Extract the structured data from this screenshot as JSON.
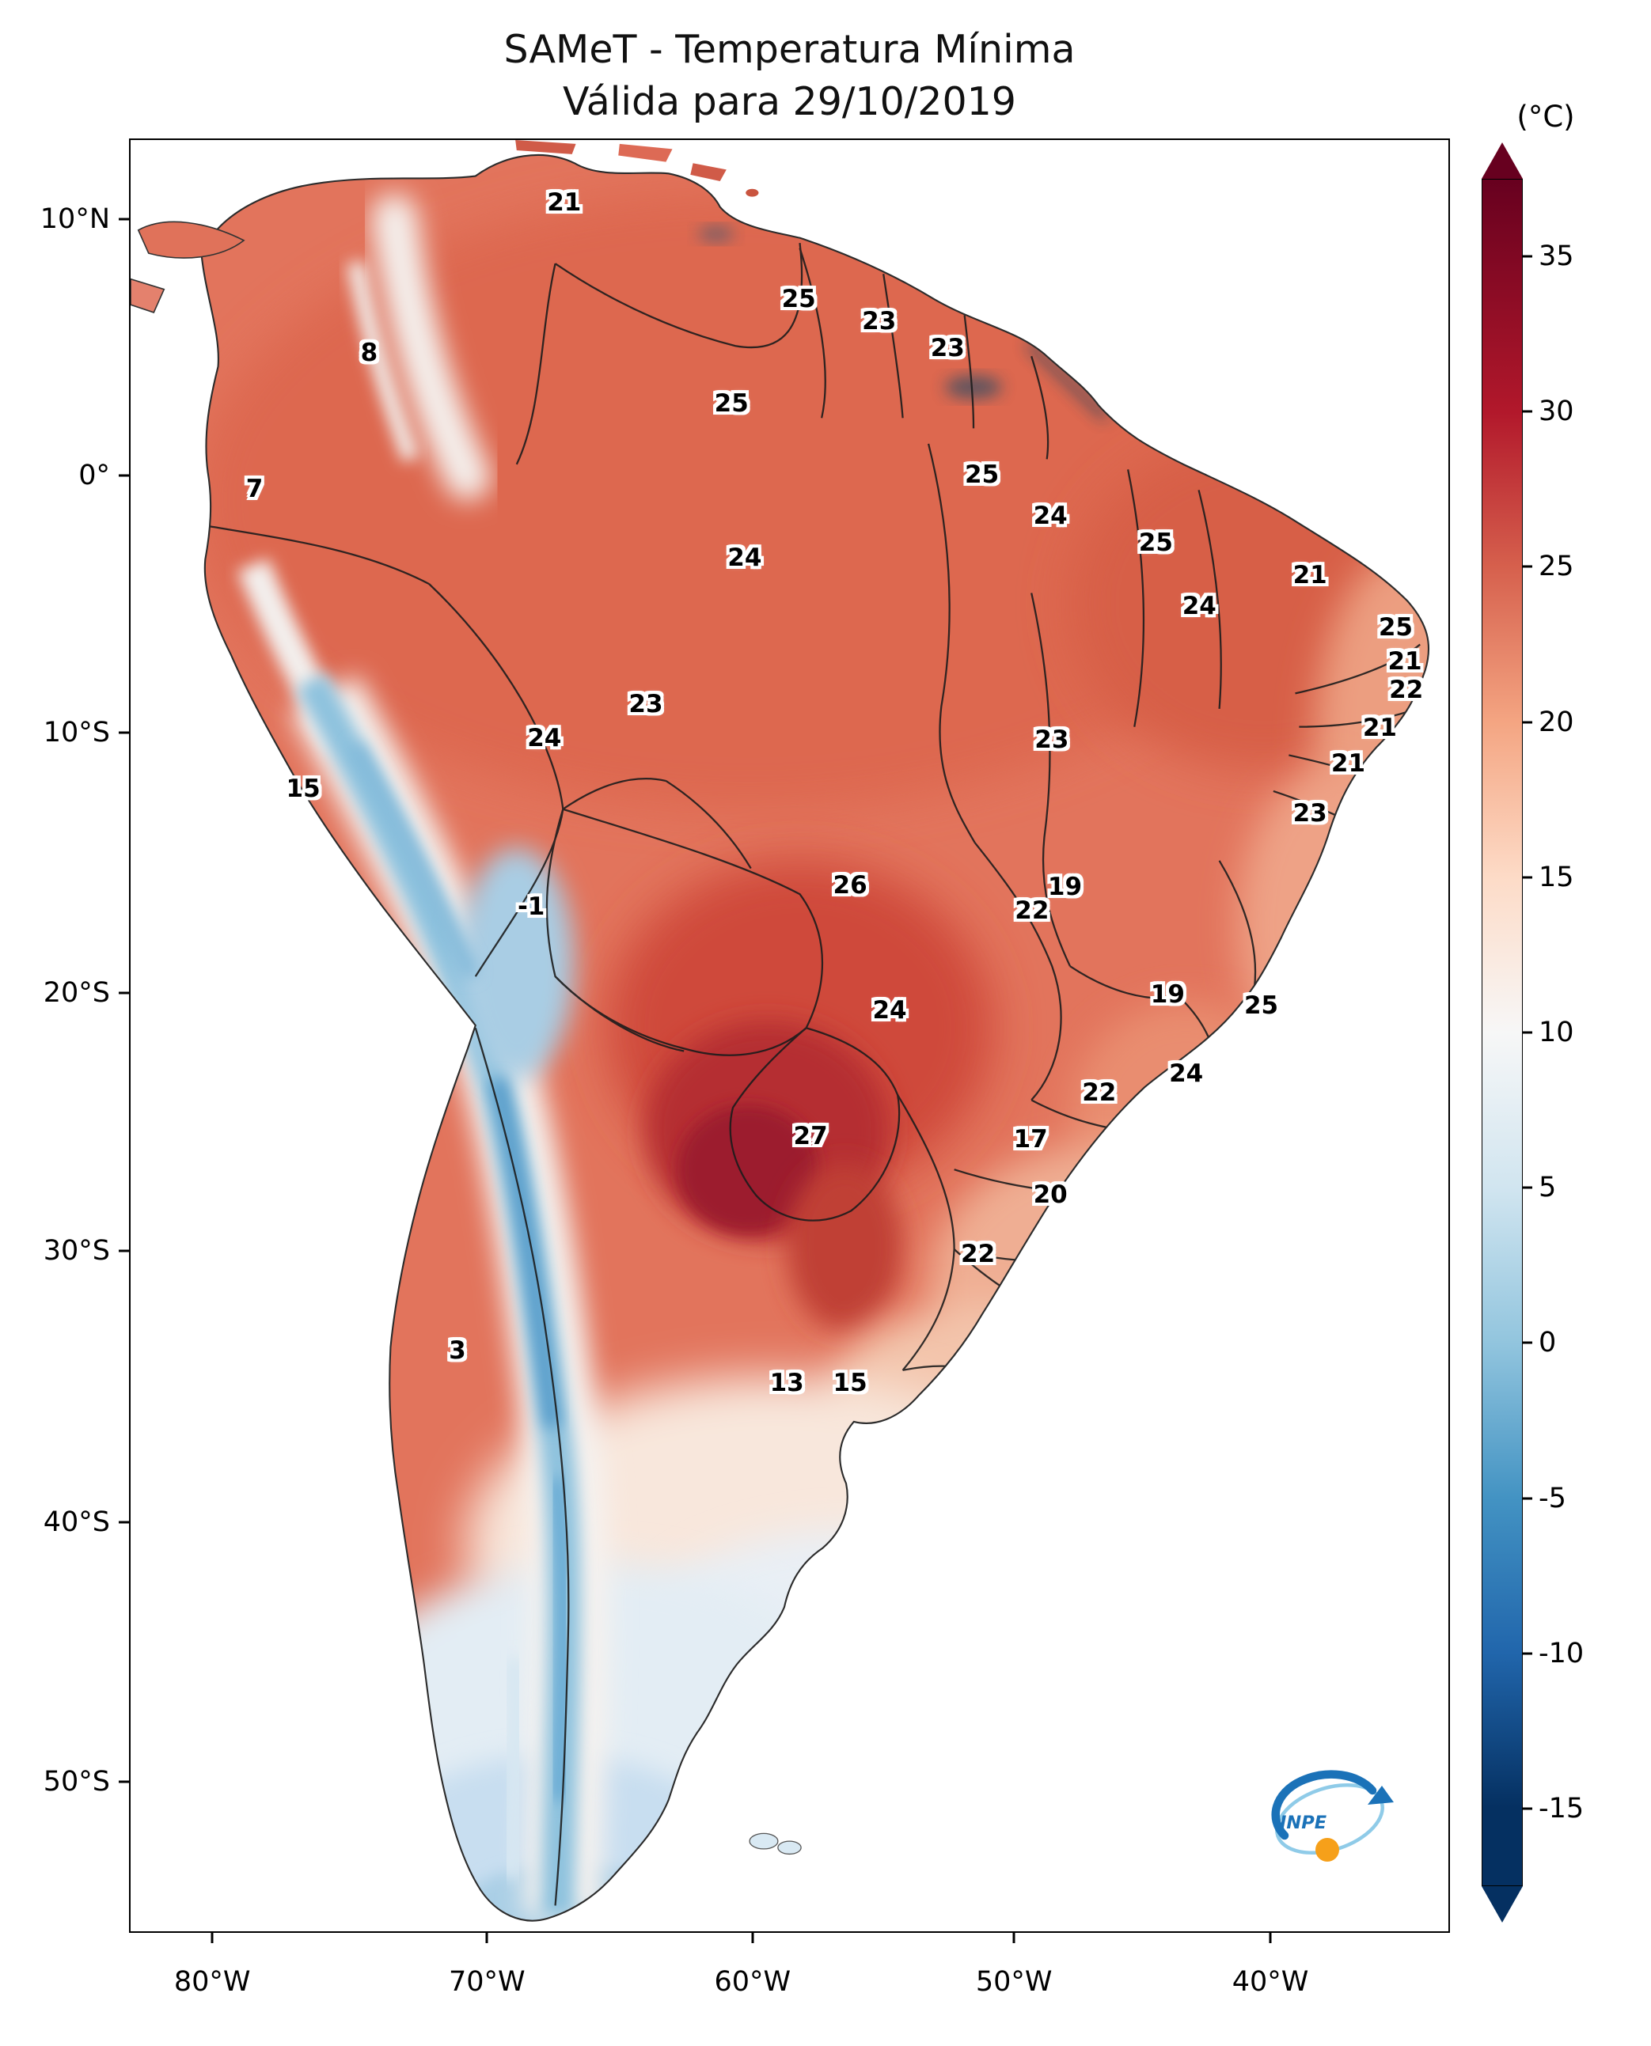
{
  "title": {
    "line1": "SAMeT - Temperatura Mínima",
    "line2": "Válida para 29/10/2019"
  },
  "colorbar": {
    "unit": "(°C)",
    "vmax": 37.5,
    "vmin": -17.5,
    "ticks": [
      35,
      30,
      25,
      20,
      15,
      10,
      5,
      0,
      -5,
      -10,
      -15
    ],
    "stops": [
      {
        "v": 37.5,
        "c": "#67001f"
      },
      {
        "v": 30,
        "c": "#b2182b"
      },
      {
        "v": 25,
        "c": "#d6604d"
      },
      {
        "v": 20,
        "c": "#f4a582"
      },
      {
        "v": 15,
        "c": "#fddbc7"
      },
      {
        "v": 10,
        "c": "#f7f7f7"
      },
      {
        "v": 5,
        "c": "#d1e5f0"
      },
      {
        "v": 0,
        "c": "#92c5de"
      },
      {
        "v": -5,
        "c": "#4393c3"
      },
      {
        "v": -10,
        "c": "#2166ac"
      },
      {
        "v": -15,
        "c": "#053061"
      },
      {
        "v": -17.5,
        "c": "#053061"
      }
    ]
  },
  "axes": {
    "lat_ticks": [
      {
        "label": "10°N",
        "f": 0.045
      },
      {
        "label": "0°",
        "f": 0.188
      },
      {
        "label": "10°S",
        "f": 0.331
      },
      {
        "label": "20°S",
        "f": 0.476
      },
      {
        "label": "30°S",
        "f": 0.62
      },
      {
        "label": "40°S",
        "f": 0.771
      },
      {
        "label": "50°S",
        "f": 0.916
      }
    ],
    "lon_ticks": [
      {
        "label": "80°W",
        "f": 0.063
      },
      {
        "label": "70°W",
        "f": 0.271
      },
      {
        "label": "60°W",
        "f": 0.472
      },
      {
        "label": "50°W",
        "f": 0.67
      },
      {
        "label": "40°W",
        "f": 0.864
      }
    ]
  },
  "map_labels": [
    {
      "value": "21",
      "fx": 0.329,
      "fy": 0.035
    },
    {
      "value": "25",
      "fx": 0.507,
      "fy": 0.089
    },
    {
      "value": "23",
      "fx": 0.568,
      "fy": 0.101
    },
    {
      "value": "23",
      "fx": 0.62,
      "fy": 0.116
    },
    {
      "value": "8",
      "fx": 0.181,
      "fy": 0.119
    },
    {
      "value": "25",
      "fx": 0.456,
      "fy": 0.147
    },
    {
      "value": "7",
      "fx": 0.094,
      "fy": 0.195
    },
    {
      "value": "25",
      "fx": 0.646,
      "fy": 0.187
    },
    {
      "value": "24",
      "fx": 0.698,
      "fy": 0.21
    },
    {
      "value": "24",
      "fx": 0.466,
      "fy": 0.233
    },
    {
      "value": "25",
      "fx": 0.778,
      "fy": 0.225
    },
    {
      "value": "21",
      "fx": 0.895,
      "fy": 0.243
    },
    {
      "value": "24",
      "fx": 0.811,
      "fy": 0.26
    },
    {
      "value": "25",
      "fx": 0.96,
      "fy": 0.272
    },
    {
      "value": "21",
      "fx": 0.967,
      "fy": 0.291
    },
    {
      "value": "22",
      "fx": 0.968,
      "fy": 0.307
    },
    {
      "value": "23",
      "fx": 0.391,
      "fy": 0.315
    },
    {
      "value": "21",
      "fx": 0.948,
      "fy": 0.328
    },
    {
      "value": "24",
      "fx": 0.314,
      "fy": 0.334
    },
    {
      "value": "23",
      "fx": 0.699,
      "fy": 0.335
    },
    {
      "value": "21",
      "fx": 0.924,
      "fy": 0.348
    },
    {
      "value": "23",
      "fx": 0.895,
      "fy": 0.376
    },
    {
      "value": "15",
      "fx": 0.131,
      "fy": 0.362
    },
    {
      "value": "-1",
      "fx": 0.304,
      "fy": 0.428
    },
    {
      "value": "26",
      "fx": 0.546,
      "fy": 0.416
    },
    {
      "value": "19",
      "fx": 0.709,
      "fy": 0.417
    },
    {
      "value": "22",
      "fx": 0.684,
      "fy": 0.43
    },
    {
      "value": "19",
      "fx": 0.787,
      "fy": 0.477
    },
    {
      "value": "25",
      "fx": 0.858,
      "fy": 0.483
    },
    {
      "value": "24",
      "fx": 0.576,
      "fy": 0.486
    },
    {
      "value": "24",
      "fx": 0.801,
      "fy": 0.521
    },
    {
      "value": "22",
      "fx": 0.735,
      "fy": 0.532
    },
    {
      "value": "27",
      "fx": 0.516,
      "fy": 0.556
    },
    {
      "value": "17",
      "fx": 0.683,
      "fy": 0.558
    },
    {
      "value": "20",
      "fx": 0.698,
      "fy": 0.589
    },
    {
      "value": "22",
      "fx": 0.643,
      "fy": 0.622
    },
    {
      "value": "3",
      "fx": 0.248,
      "fy": 0.676
    },
    {
      "value": "13",
      "fx": 0.498,
      "fy": 0.694
    },
    {
      "value": "15",
      "fx": 0.546,
      "fy": 0.694
    }
  ],
  "logo": {
    "text": "INPE",
    "colors": {
      "blue": "#1b72b8",
      "light_blue": "#8fcbe8",
      "orange": "#f6a01a"
    }
  },
  "chart_data": {
    "type": "heatmap",
    "title": "SAMeT - Temperatura Mínima",
    "subtitle": "Válida para 29/10/2019",
    "unit": "°C",
    "value_range": [
      -17.5,
      37.5
    ],
    "colorbar_ticks": [
      35,
      30,
      25,
      20,
      15,
      10,
      5,
      0,
      -5,
      -10,
      -15
    ],
    "lat_ticks": [
      "10°N",
      "0°",
      "10°S",
      "20°S",
      "30°S",
      "40°S",
      "50°S"
    ],
    "lon_ticks": [
      "80°W",
      "70°W",
      "60°W",
      "50°W",
      "40°W"
    ],
    "legend_position": "right",
    "points": [
      {
        "value": 21,
        "lon": -66.7,
        "lat": 10.7
      },
      {
        "value": 25,
        "lon": -57.8,
        "lat": 7.0
      },
      {
        "value": 23,
        "lon": -54.8,
        "lat": 6.1
      },
      {
        "value": 23,
        "lon": -52.2,
        "lat": 5.1
      },
      {
        "value": 8,
        "lon": -74.1,
        "lat": 4.9
      },
      {
        "value": 25,
        "lon": -60.4,
        "lat": 3.0
      },
      {
        "value": 7,
        "lon": -78.5,
        "lat": -0.3
      },
      {
        "value": 25,
        "lon": -50.9,
        "lat": 0.2
      },
      {
        "value": 24,
        "lon": -48.3,
        "lat": -1.4
      },
      {
        "value": 24,
        "lon": -59.9,
        "lat": -3.0
      },
      {
        "value": 25,
        "lon": -44.3,
        "lat": -2.4
      },
      {
        "value": 21,
        "lon": -38.4,
        "lat": -3.6
      },
      {
        "value": 24,
        "lon": -42.6,
        "lat": -4.8
      },
      {
        "value": 25,
        "lon": -35.2,
        "lat": -5.6
      },
      {
        "value": 21,
        "lon": -34.8,
        "lat": -6.9
      },
      {
        "value": 22,
        "lon": -34.8,
        "lat": -8.0
      },
      {
        "value": 23,
        "lon": -63.6,
        "lat": -8.6
      },
      {
        "value": 21,
        "lon": -35.8,
        "lat": -9.5
      },
      {
        "value": 24,
        "lon": -67.5,
        "lat": -9.9
      },
      {
        "value": 23,
        "lon": -48.2,
        "lat": -10.0
      },
      {
        "value": 21,
        "lon": -37.0,
        "lat": -10.9
      },
      {
        "value": 23,
        "lon": -38.4,
        "lat": -12.8
      },
      {
        "value": 15,
        "lon": -76.6,
        "lat": -11.8
      },
      {
        "value": -1,
        "lon": -68.0,
        "lat": -16.4
      },
      {
        "value": 26,
        "lon": -55.9,
        "lat": -15.6
      },
      {
        "value": 19,
        "lon": -47.7,
        "lat": -15.7
      },
      {
        "value": 22,
        "lon": -49.0,
        "lat": -16.5
      },
      {
        "value": 19,
        "lon": -43.8,
        "lat": -19.8
      },
      {
        "value": 25,
        "lon": -40.3,
        "lat": -20.2
      },
      {
        "value": 24,
        "lon": -54.4,
        "lat": -20.4
      },
      {
        "value": 24,
        "lon": -43.1,
        "lat": -22.8
      },
      {
        "value": 22,
        "lon": -46.4,
        "lat": -23.5
      },
      {
        "value": 27,
        "lon": -57.4,
        "lat": -25.2
      },
      {
        "value": 17,
        "lon": -49.0,
        "lat": -25.3
      },
      {
        "value": 20,
        "lon": -48.3,
        "lat": -27.5
      },
      {
        "value": 22,
        "lon": -51.0,
        "lat": -29.7
      },
      {
        "value": 3,
        "lon": -70.8,
        "lat": -33.5
      },
      {
        "value": 13,
        "lon": -58.3,
        "lat": -34.7
      },
      {
        "value": 15,
        "lon": -55.9,
        "lat": -34.7
      }
    ]
  }
}
